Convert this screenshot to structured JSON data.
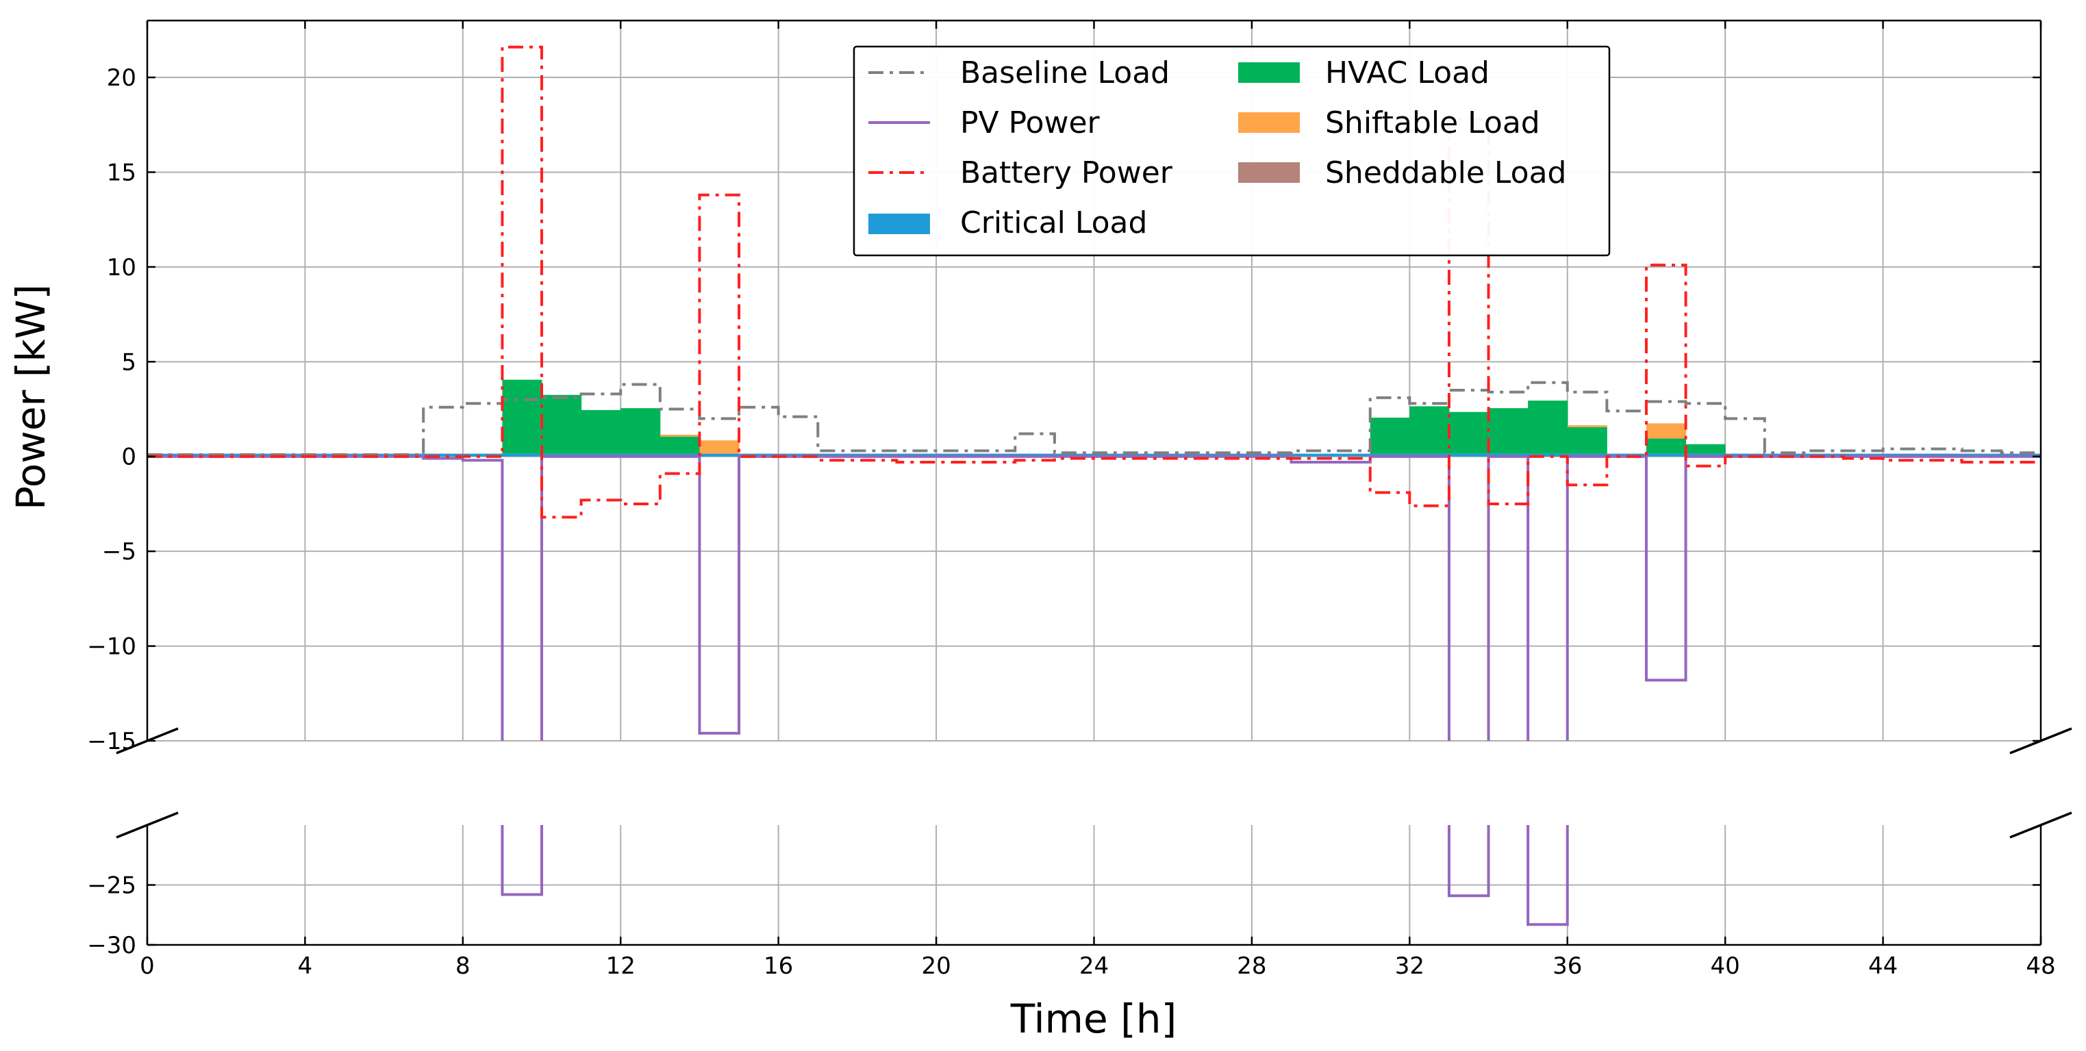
{
  "chart_data": {
    "type": "step",
    "xlabel": "Time [h]",
    "ylabel": "Power [kW]",
    "xlim": [
      0,
      48
    ],
    "x_ticks": [
      0,
      4,
      8,
      12,
      16,
      20,
      24,
      28,
      32,
      36,
      40,
      44,
      48
    ],
    "y_axis_break": {
      "lower_panel": [
        -30,
        -20
      ],
      "upper_panel": [
        -15,
        23
      ]
    },
    "y_ticks_upper": [
      -15,
      -10,
      -5,
      0,
      5,
      10,
      15,
      20
    ],
    "y_ticks_lower": [
      -25,
      -30
    ],
    "legend": {
      "placement": "top-center",
      "entries": [
        "Baseline Load",
        "PV Power",
        "Battery Power",
        "Critical Load",
        "HVAC Load",
        "Shiftable Load",
        "Sheddable Load"
      ]
    },
    "colors": {
      "baseline": "#7f7f7f",
      "pv": "#9467bd",
      "battery": "#ff2020",
      "critical": "#1f9bd7",
      "hvac": "#00b359",
      "shiftable": "#ffa54a",
      "sheddable": "#b5837a",
      "grid": "#b0b0b0"
    },
    "series": [
      {
        "name": "Baseline Load",
        "style": "dash-dot step",
        "values": [
          0.1,
          0.1,
          0.1,
          0.1,
          0.1,
          0.1,
          0.1,
          2.6,
          2.8,
          3.0,
          3.1,
          3.3,
          3.8,
          2.5,
          2.0,
          2.6,
          2.1,
          0.3,
          0.3,
          0.3,
          0.3,
          0.3,
          1.2,
          0.2,
          0.2,
          0.2,
          0.2,
          0.2,
          0.2,
          0.3,
          0.3,
          3.1,
          2.8,
          3.5,
          3.4,
          3.9,
          3.4,
          2.4,
          2.9,
          2.8,
          2.0,
          0.2,
          0.3,
          0.3,
          0.4,
          0.4,
          0.3,
          0.2
        ]
      },
      {
        "name": "PV Power",
        "style": "solid step",
        "values": [
          0,
          0,
          0,
          0,
          0,
          0,
          0,
          -0.1,
          -0.2,
          -25.8,
          0,
          0,
          0,
          0,
          -14.6,
          0,
          0,
          0,
          0,
          0,
          0,
          0,
          0,
          0,
          0,
          0,
          0,
          0,
          0,
          -0.3,
          -0.3,
          0,
          0,
          -25.9,
          0,
          -28.3,
          0,
          0,
          -11.8,
          0,
          0,
          0,
          0,
          0,
          0,
          0,
          0,
          0
        ]
      },
      {
        "name": "Battery Power",
        "style": "dash-dot step",
        "values": [
          0,
          0,
          0,
          0,
          0,
          0,
          0,
          0,
          0,
          21.6,
          -3.2,
          -2.3,
          -2.5,
          -0.9,
          13.8,
          0,
          0,
          -0.2,
          -0.2,
          -0.3,
          -0.3,
          -0.3,
          -0.2,
          -0.1,
          -0.1,
          -0.1,
          -0.1,
          -0.1,
          -0.1,
          -0.1,
          -0.1,
          -1.9,
          -2.6,
          17.8,
          -2.5,
          0,
          -1.5,
          0,
          10.1,
          -0.5,
          0,
          0,
          0,
          -0.1,
          -0.2,
          -0.2,
          -0.3,
          -0.3
        ]
      },
      {
        "name": "Critical Load",
        "style": "stacked bar",
        "values": [
          0.15,
          0.15,
          0.15,
          0.15,
          0.15,
          0.15,
          0.15,
          0.15,
          0.15,
          0.15,
          0.15,
          0.15,
          0.15,
          0.15,
          0.15,
          0.15,
          0.15,
          0.15,
          0.15,
          0.15,
          0.15,
          0.15,
          0.15,
          0.15,
          0.15,
          0.15,
          0.15,
          0.15,
          0.15,
          0.15,
          0.15,
          0.15,
          0.15,
          0.15,
          0.15,
          0.15,
          0.15,
          0.15,
          0.15,
          0.15,
          0.15,
          0.15,
          0.15,
          0.15,
          0.15,
          0.15,
          0.15,
          0.15
        ]
      },
      {
        "name": "HVAC Load",
        "style": "stacked bar",
        "values": [
          0,
          0,
          0,
          0,
          0,
          0,
          0,
          0,
          0,
          3.9,
          3.1,
          2.3,
          2.4,
          0.9,
          0,
          0,
          0,
          0,
          0,
          0,
          0,
          0,
          0,
          0,
          0,
          0,
          0,
          0,
          0,
          0,
          0,
          1.9,
          2.5,
          2.2,
          2.4,
          2.8,
          1.4,
          0,
          0.8,
          0.5,
          0,
          0,
          0,
          0,
          0,
          0,
          0,
          0
        ]
      },
      {
        "name": "Shiftable Load",
        "style": "stacked bar",
        "values": [
          0,
          0,
          0,
          0,
          0,
          0,
          0,
          0,
          0,
          0,
          0,
          0,
          0,
          0.1,
          0.7,
          0,
          0,
          0,
          0,
          0,
          0,
          0,
          0,
          0,
          0,
          0,
          0,
          0,
          0,
          0,
          0,
          0,
          0,
          0,
          0,
          0,
          0.1,
          0,
          0.8,
          0,
          0,
          0,
          0,
          0,
          0,
          0,
          0,
          0
        ]
      },
      {
        "name": "Sheddable Load",
        "style": "stacked bar",
        "values": [
          0,
          0,
          0,
          0,
          0,
          0,
          0,
          0,
          0,
          0,
          0,
          0,
          0,
          0,
          0,
          0,
          0,
          0,
          0,
          0,
          0,
          0,
          0,
          0,
          0,
          0,
          0,
          0,
          0,
          0,
          0,
          0,
          0,
          0,
          0,
          0,
          0,
          0,
          0,
          0,
          0,
          0,
          0,
          0,
          0,
          0,
          0,
          0
        ]
      }
    ]
  }
}
